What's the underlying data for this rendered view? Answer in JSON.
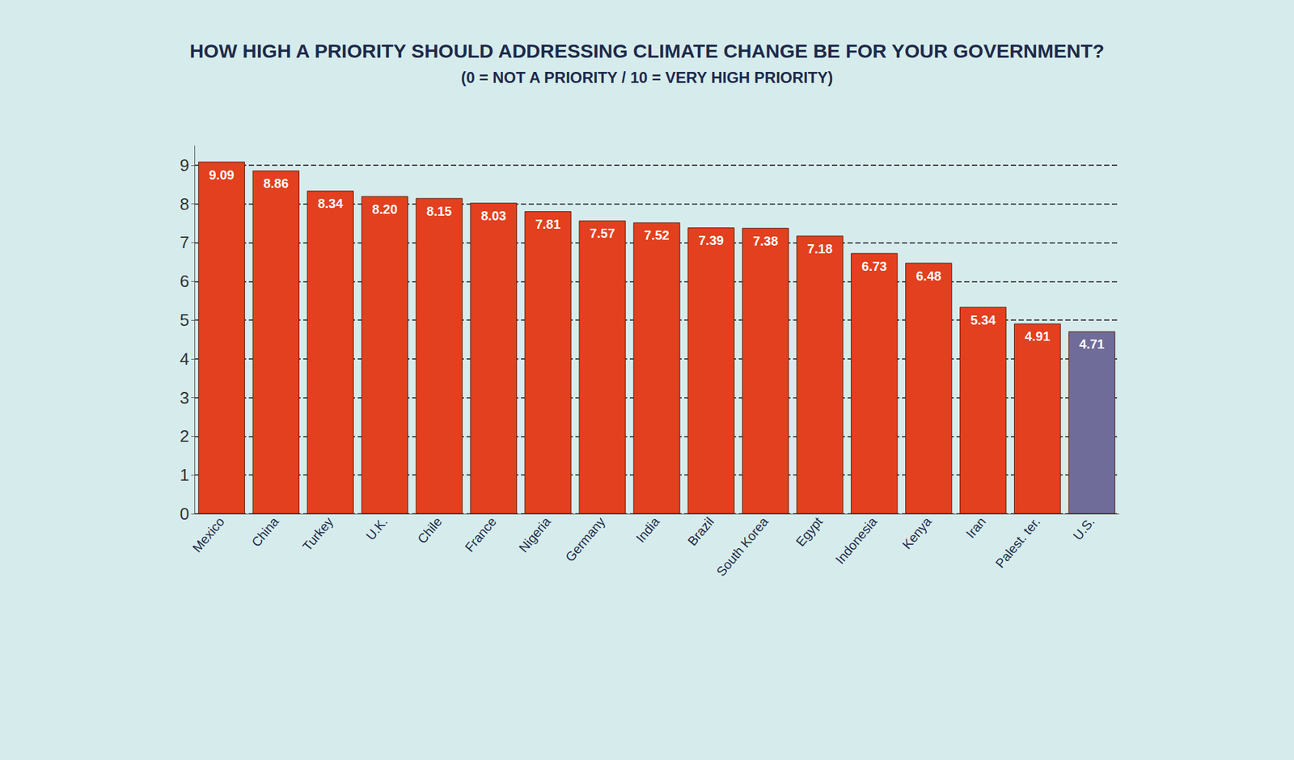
{
  "chart_data": {
    "type": "bar",
    "title": "HOW HIGH A PRIORITY SHOULD ADDRESSING CLIMATE CHANGE BE FOR YOUR GOVERNMENT?",
    "subtitle": "(0 = NOT A PRIORITY / 10 = VERY HIGH PRIORITY)",
    "categories": [
      "Mexico",
      "China",
      "Turkey",
      "U.K.",
      "Chile",
      "France",
      "Nigeria",
      "Germany",
      "India",
      "Brazil",
      "South Korea",
      "Egypt",
      "Indonesia",
      "Kenya",
      "Iran",
      "Palest. ter.",
      "U.S."
    ],
    "values": [
      9.09,
      8.86,
      8.34,
      8.2,
      8.15,
      8.03,
      7.81,
      7.57,
      7.52,
      7.39,
      7.38,
      7.18,
      6.73,
      6.48,
      5.34,
      4.91,
      4.71
    ],
    "value_labels": [
      "9.09",
      "8.86",
      "8.34",
      "8.20",
      "8.15",
      "8.03",
      "7.81",
      "7.57",
      "7.52",
      "7.39",
      "7.38",
      "7.18",
      "6.73",
      "6.48",
      "5.34",
      "4.91",
      "4.71"
    ],
    "colors": [
      "#e2401e",
      "#e2401e",
      "#e2401e",
      "#e2401e",
      "#e2401e",
      "#e2401e",
      "#e2401e",
      "#e2401e",
      "#e2401e",
      "#e2401e",
      "#e2401e",
      "#e2401e",
      "#e2401e",
      "#e2401e",
      "#e2401e",
      "#e2401e",
      "#6f6c99"
    ],
    "ylim": [
      0,
      9.5
    ],
    "yticks": [
      0,
      1,
      2,
      3,
      4,
      5,
      6,
      7,
      8,
      9
    ],
    "grid": true,
    "data_labels": true
  }
}
